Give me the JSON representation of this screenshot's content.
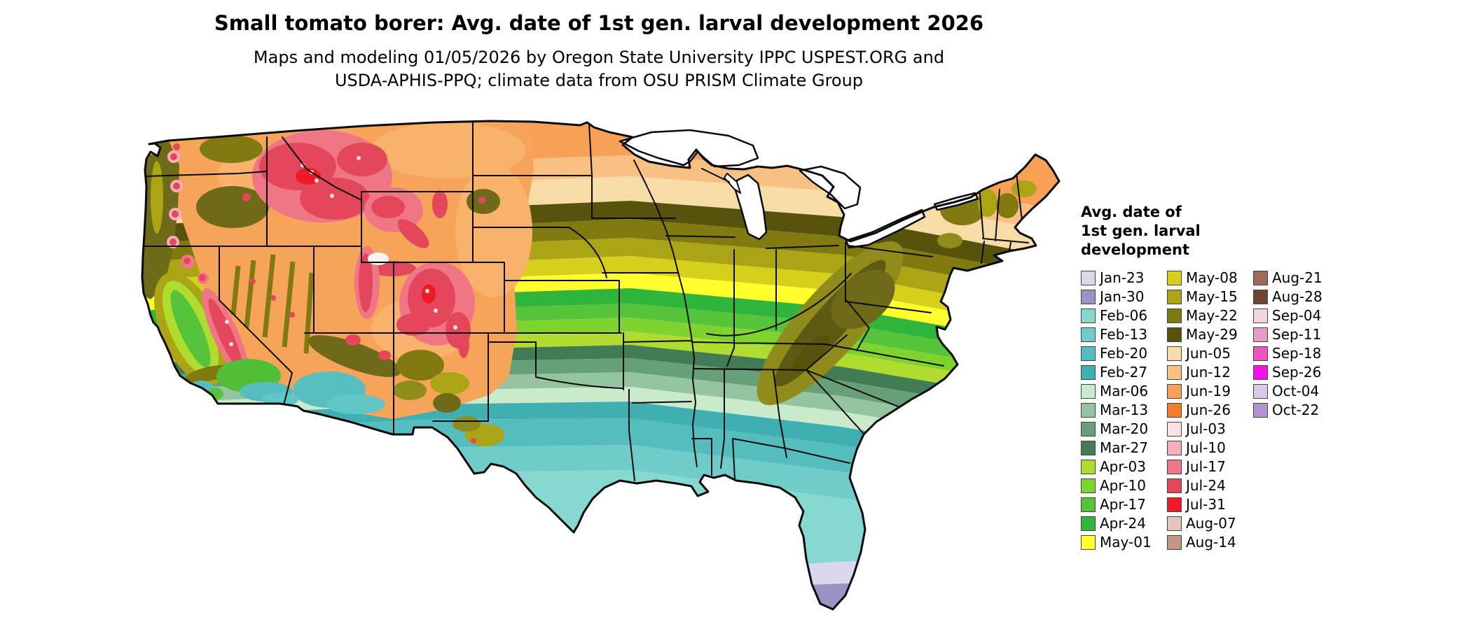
{
  "header": {
    "title": "Small tomato borer: Avg. date of 1st gen. larval development 2026",
    "subtitle_line1": "Maps and modeling 01/05/2026 by Oregon State University IPPC USPEST.ORG and",
    "subtitle_line2": "USDA-APHIS-PPQ; climate data from OSU PRISM Climate Group"
  },
  "legend": {
    "title_lines": [
      "Avg. date of",
      "1st gen. larval",
      "development"
    ],
    "columns": [
      {
        "items": [
          {
            "label": "Jan-23",
            "color": "#DCD7EC"
          },
          {
            "label": "Jan-30",
            "color": "#9D92C4"
          },
          {
            "label": "Feb-06",
            "color": "#86D8D0"
          },
          {
            "label": "Feb-13",
            "color": "#6FCCC8"
          },
          {
            "label": "Feb-20",
            "color": "#55BDBD"
          },
          {
            "label": "Feb-27",
            "color": "#3FAFB2"
          },
          {
            "label": "Mar-06",
            "color": "#C9EBCB"
          },
          {
            "label": "Mar-13",
            "color": "#94C4A0"
          },
          {
            "label": "Mar-20",
            "color": "#679F79"
          },
          {
            "label": "Mar-27",
            "color": "#417C55"
          },
          {
            "label": "Apr-03",
            "color": "#B0DC30"
          },
          {
            "label": "Apr-10",
            "color": "#7ED32F"
          },
          {
            "label": "Apr-17",
            "color": "#55C43A"
          },
          {
            "label": "Apr-24",
            "color": "#2FB53B"
          },
          {
            "label": "May-01",
            "color": "#FFFF2E"
          }
        ]
      },
      {
        "items": [
          {
            "label": "May-08",
            "color": "#D6CF1C"
          },
          {
            "label": "May-15",
            "color": "#ABA414"
          },
          {
            "label": "May-22",
            "color": "#807A10"
          },
          {
            "label": "May-29",
            "color": "#57530C"
          },
          {
            "label": "Jun-05",
            "color": "#F7DCA8"
          },
          {
            "label": "Jun-12",
            "color": "#F9C083"
          },
          {
            "label": "Jun-19",
            "color": "#F8A055"
          },
          {
            "label": "Jun-26",
            "color": "#F27D2A"
          },
          {
            "label": "Jul-03",
            "color": "#FBE0E4"
          },
          {
            "label": "Jul-10",
            "color": "#F6AEB9"
          },
          {
            "label": "Jul-17",
            "color": "#EF7685"
          },
          {
            "label": "Jul-24",
            "color": "#E4475C"
          },
          {
            "label": "Jul-31",
            "color": "#ED1C24"
          },
          {
            "label": "Aug-07",
            "color": "#E5C6BC"
          },
          {
            "label": "Aug-14",
            "color": "#C79585"
          }
        ]
      },
      {
        "items": [
          {
            "label": "Aug-21",
            "color": "#A06A56"
          },
          {
            "label": "Aug-28",
            "color": "#6F4530"
          },
          {
            "label": "Sep-04",
            "color": "#F2D4E3"
          },
          {
            "label": "Sep-11",
            "color": "#E79CC8"
          },
          {
            "label": "Sep-18",
            "color": "#F153C0"
          },
          {
            "label": "Sep-26",
            "color": "#F312E9"
          },
          {
            "label": "Oct-04",
            "color": "#DCC8EA"
          },
          {
            "label": "Oct-22",
            "color": "#B393D6"
          }
        ]
      }
    ]
  },
  "map": {
    "region": "Conterminous United States",
    "description": "Choropleth raster of average date of first generation larval development; earliest dates (Jan-Feb, purples and teals) in south Florida and south Texas, latest (Jul, reds) in the high Rockies."
  }
}
